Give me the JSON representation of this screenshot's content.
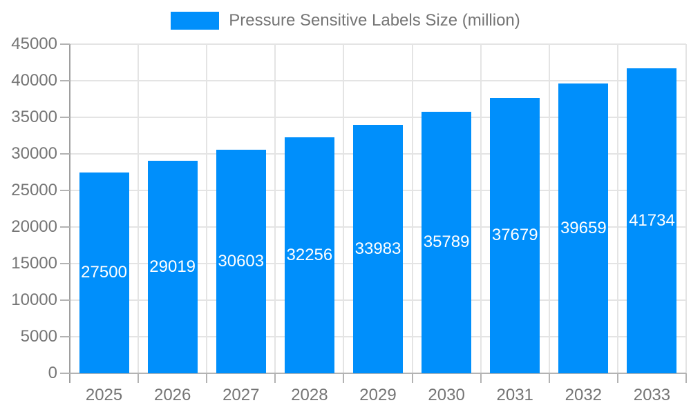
{
  "legend": {
    "label": "Pressure Sensitive Labels Size (million)"
  },
  "colors": {
    "bar": "#008FFB",
    "grid": "#e4e4e4",
    "axis_y": "#9e9e9e",
    "axis_x": "#b3b3b3",
    "tick": "#b3b3b3",
    "axis_label": "#757575",
    "value_label": "#ffffff",
    "background": "#ffffff"
  },
  "chart_data": {
    "type": "bar",
    "title": "Pressure Sensitive Labels Size (million)",
    "legend_position": "top",
    "categories": [
      "2025",
      "2026",
      "2027",
      "2028",
      "2029",
      "2030",
      "2031",
      "2032",
      "2033"
    ],
    "series": [
      {
        "name": "Pressure Sensitive Labels Size (million)",
        "color": "#008FFB",
        "values": [
          27500,
          29019,
          30603,
          32256,
          33983,
          35789,
          37679,
          39659,
          41734
        ]
      }
    ],
    "value_labels_shown": true,
    "value_label_position": "inside-center",
    "xlabel": "",
    "ylabel": "",
    "ylim": [
      0,
      45000
    ],
    "y_tick_step": 5000,
    "y_tick_labels": [
      "0",
      "5000",
      "10000",
      "15000",
      "20000",
      "25000",
      "30000",
      "35000",
      "40000",
      "45000"
    ],
    "grid": true
  }
}
